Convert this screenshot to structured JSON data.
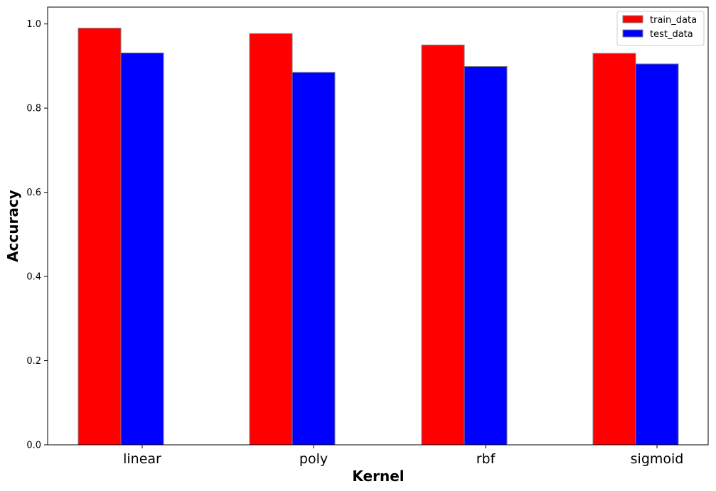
{
  "chart_data": {
    "type": "bar",
    "title": "",
    "xlabel": "Kernel",
    "ylabel": "Accuracy",
    "categories": [
      "linear",
      "poly",
      "rbf",
      "sigmoid"
    ],
    "series": [
      {
        "name": "train_data",
        "color": "#ff0000",
        "values": [
          0.99,
          0.977,
          0.95,
          0.93
        ]
      },
      {
        "name": "test_data",
        "color": "#0000ff",
        "values": [
          0.931,
          0.885,
          0.899,
          0.905
        ]
      }
    ],
    "ylim": [
      0,
      1.04
    ],
    "yticks": [
      "0.0",
      "0.2",
      "0.4",
      "0.6",
      "0.8",
      "1.0"
    ],
    "bar_edge_color": "#808080",
    "grid": false,
    "legend_position": "top-right"
  }
}
